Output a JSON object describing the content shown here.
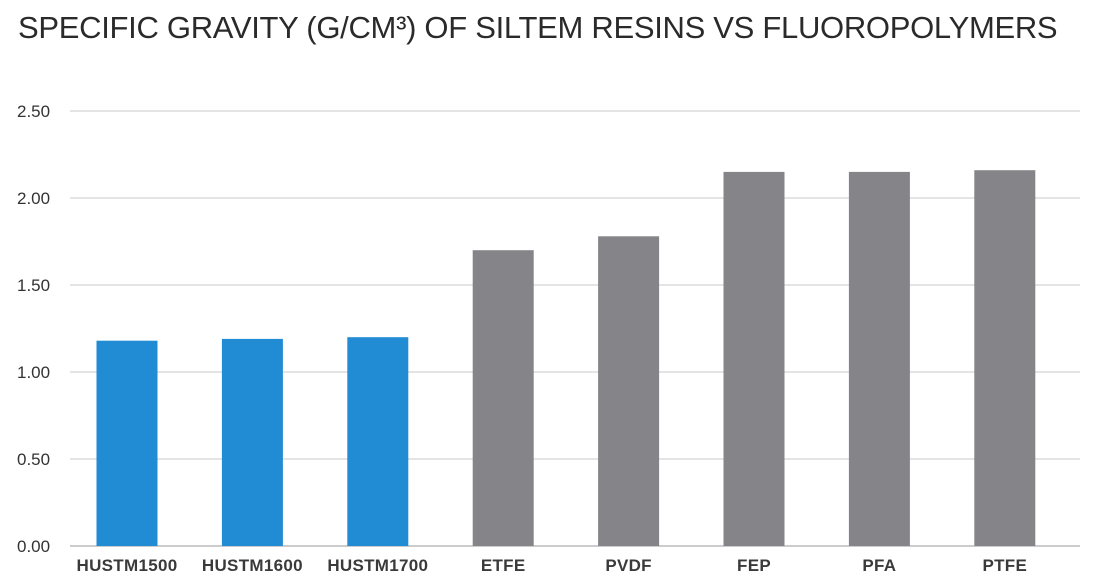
{
  "chart_data": {
    "type": "bar",
    "title": "SPECIFIC GRAVITY (G/CM³) OF SILTEM RESINS VS FLUOROPOLYMERS",
    "xlabel": "",
    "ylabel": "",
    "categories": [
      "HUSTM1500",
      "HUSTM1600",
      "HUSTM1700",
      "ETFE",
      "PVDF",
      "FEP",
      "PFA",
      "PTFE"
    ],
    "values": [
      1.18,
      1.19,
      1.2,
      1.7,
      1.78,
      2.15,
      2.15,
      2.16
    ],
    "bar_colors": [
      "#218bd4",
      "#218bd4",
      "#218bd4",
      "#858489",
      "#858489",
      "#858489",
      "#858489",
      "#858489"
    ],
    "ylim": [
      0,
      2.5
    ],
    "yticks": [
      "0.00",
      "0.50",
      "1.00",
      "1.50",
      "2.00",
      "2.50"
    ],
    "grid": true,
    "legend": "none"
  }
}
